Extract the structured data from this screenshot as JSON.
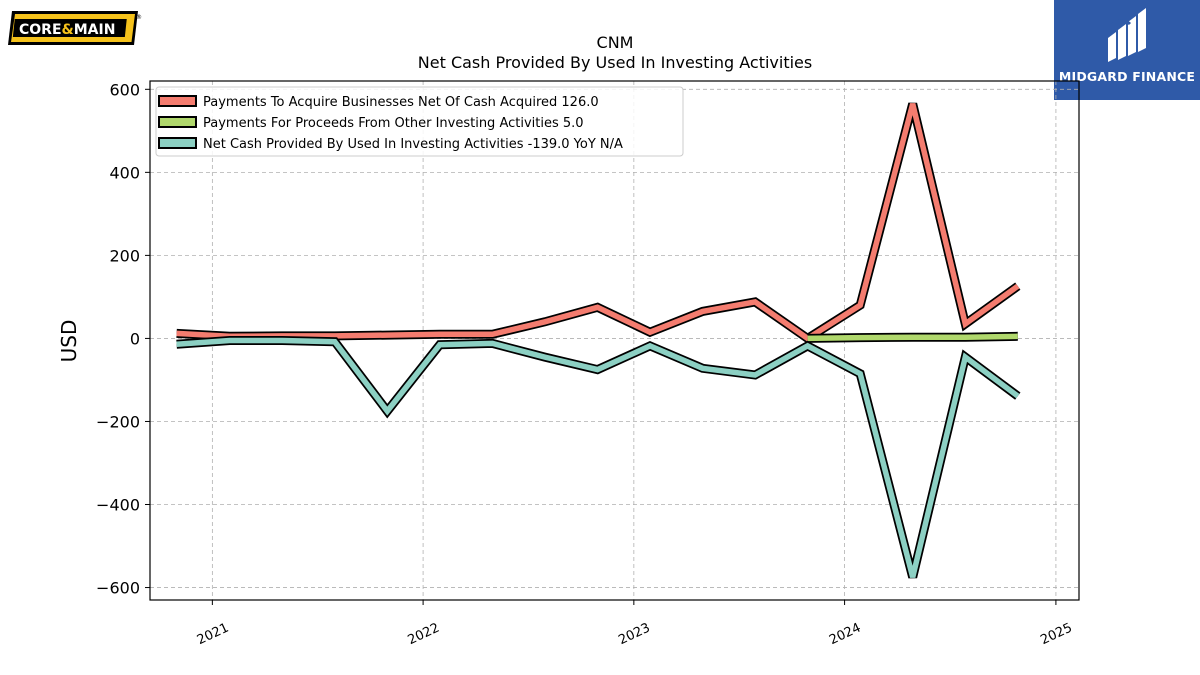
{
  "brand_left": {
    "name": "CORE & MAIN",
    "part1": "CORE",
    "amp": "&",
    "part2": "MAIN",
    "reg": "®"
  },
  "brand_right": {
    "name": "MIDGARD FINANCE"
  },
  "chart_data": {
    "type": "line",
    "title": "CNM",
    "subtitle": "Net Cash Provided By Used In Investing Activities",
    "ylabel": "USD",
    "xlabel": "",
    "ylim": [
      -630,
      620
    ],
    "xlim": [
      "2020-09-15",
      "2025-02-10"
    ],
    "yticks": [
      600,
      400,
      200,
      0,
      -200,
      -400,
      -600
    ],
    "ytick_labels": [
      "600",
      "400",
      "200",
      "0",
      "−200",
      "−400",
      "−600"
    ],
    "xticks": [
      "2021-01-01",
      "2022-01-01",
      "2023-01-01",
      "2024-01-01",
      "2025-01-01"
    ],
    "xtick_labels": [
      "2021",
      "2022",
      "2023",
      "2024",
      "2025"
    ],
    "grid": true,
    "legend_position": "top-left",
    "series": [
      {
        "name": "Payments To Acquire Businesses Net Of Cash Acquired  126.0",
        "color": "#f47c6f",
        "x": [
          "2020-10-31",
          "2021-01-31",
          "2021-05-02",
          "2021-08-01",
          "2021-10-31",
          "2022-01-30",
          "2022-05-01",
          "2022-07-31",
          "2022-10-30",
          "2023-01-29",
          "2023-04-30",
          "2023-07-30",
          "2023-10-29",
          "2024-01-28",
          "2024-04-28",
          "2024-07-28",
          "2024-10-27"
        ],
        "values": [
          12,
          5,
          6,
          6,
          8,
          10,
          10,
          40,
          75,
          15,
          65,
          88,
          0,
          80,
          565,
          35,
          126
        ]
      },
      {
        "name": "Payments For Proceeds From Other Investing Activities  5.0",
        "color": "#b0d86c",
        "x": [
          "2023-10-29",
          "2024-01-28",
          "2024-04-28",
          "2024-07-28",
          "2024-10-27"
        ],
        "values": [
          0,
          2,
          3,
          3,
          5
        ]
      },
      {
        "name": "Net Cash Provided By Used In Investing Activities  -139.0 YoY N/A",
        "color": "#8cd0c3",
        "x": [
          "2020-10-31",
          "2021-01-31",
          "2021-05-02",
          "2021-08-01",
          "2021-10-31",
          "2022-01-30",
          "2022-05-01",
          "2022-07-31",
          "2022-10-30",
          "2023-01-29",
          "2023-04-30",
          "2023-07-30",
          "2023-10-29",
          "2024-01-28",
          "2024-04-28",
          "2024-07-28",
          "2024-10-27"
        ],
        "values": [
          -14,
          -5,
          -5,
          -8,
          -175,
          -15,
          -12,
          -45,
          -75,
          -18,
          -72,
          -88,
          -18,
          -85,
          -575,
          -45,
          -139
        ]
      }
    ]
  }
}
